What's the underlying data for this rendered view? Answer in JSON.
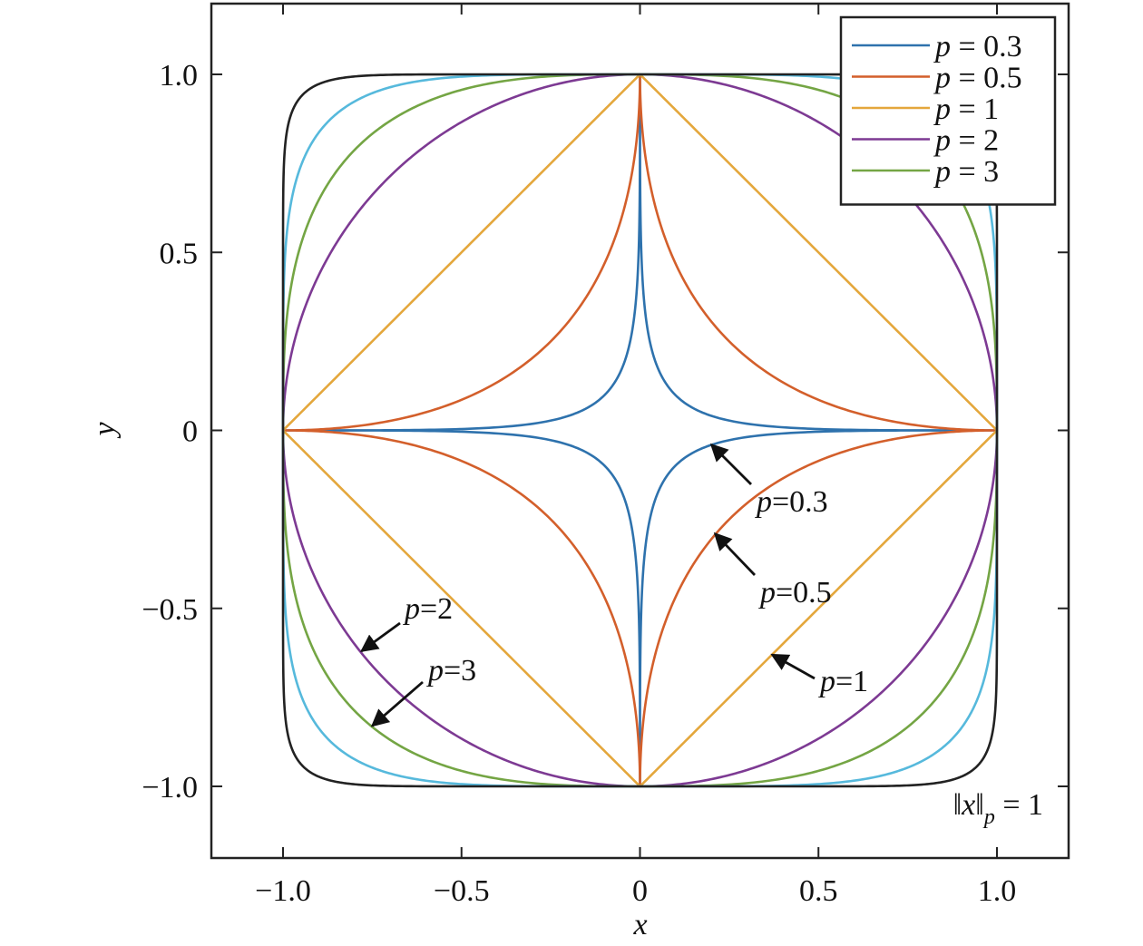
{
  "chart_data": {
    "type": "line",
    "title": "",
    "xlabel": "x",
    "ylabel": "y",
    "xlim": [
      -1.2,
      1.2
    ],
    "ylim": [
      -1.2,
      1.2
    ],
    "x_ticks": [
      -1.0,
      -0.5,
      0,
      0.5,
      1.0
    ],
    "y_ticks": [
      -1.0,
      -0.5,
      0,
      0.5,
      1.0
    ],
    "x_tick_labels": [
      "−1.0",
      "−0.5",
      "0",
      "0.5",
      "1.0"
    ],
    "y_tick_labels": [
      "−1.0",
      "−0.5",
      "0",
      "0.5",
      "1.0"
    ],
    "grid": false,
    "legend_position": "top-right",
    "equation": "‖x‖p = 1",
    "series": [
      {
        "name": "p = 0.3",
        "p": 0.3,
        "color": "#2e72ad",
        "in_legend": true
      },
      {
        "name": "p = 0.5",
        "p": 0.5,
        "color": "#d35f2b",
        "in_legend": true
      },
      {
        "name": "p = 1",
        "p": 1,
        "color": "#e4a73c",
        "in_legend": true
      },
      {
        "name": "p = 2",
        "p": 2,
        "color": "#7d3a93",
        "in_legend": true
      },
      {
        "name": "p = 3",
        "p": 3,
        "color": "#74a544",
        "in_legend": true
      },
      {
        "p": 5,
        "color": "#56b9dc",
        "in_legend": false
      },
      {
        "p": 12,
        "color": "#222222",
        "in_legend": false
      }
    ],
    "annotations": [
      {
        "text": "p=0.3",
        "point": [
          0.2,
          -0.04
        ]
      },
      {
        "text": "p=0.5",
        "point": [
          0.21,
          -0.29
        ]
      },
      {
        "text": "p=1",
        "point": [
          0.37,
          -0.63
        ]
      },
      {
        "text": "p=2",
        "point": [
          -0.78,
          -0.62
        ]
      },
      {
        "text": "p=3",
        "point": [
          -0.75,
          -0.83
        ]
      }
    ]
  }
}
